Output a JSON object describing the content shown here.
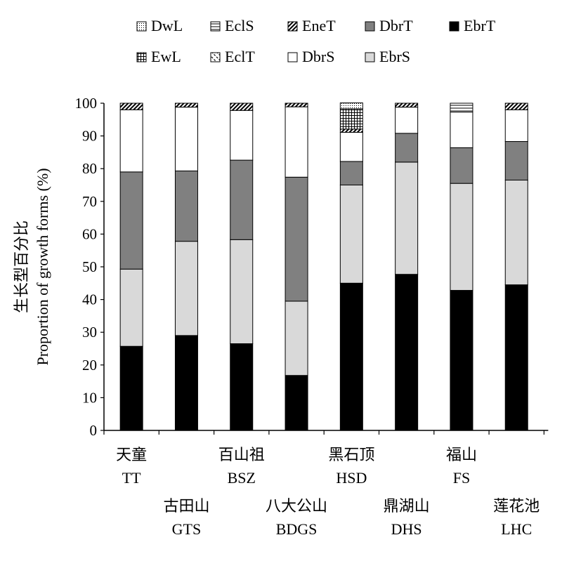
{
  "chart_data": {
    "type": "bar",
    "stacked": true,
    "ylabel_cn": "生长型百分比",
    "ylabel": "Proportion of growth forms (%)",
    "ylim": [
      0,
      100
    ],
    "yticks": [
      0,
      10,
      20,
      30,
      40,
      50,
      60,
      70,
      80,
      90,
      100
    ],
    "legend_position": "top",
    "categories": [
      {
        "cn": "天童",
        "en": "TT"
      },
      {
        "cn": "古田山",
        "en": "GTS"
      },
      {
        "cn": "百山祖",
        "en": "BSZ"
      },
      {
        "cn": "八大公山",
        "en": "BDGS"
      },
      {
        "cn": "黑石顶",
        "en": "HSD"
      },
      {
        "cn": "鼎湖山",
        "en": "DHS"
      },
      {
        "cn": "福山",
        "en": "FS"
      },
      {
        "cn": "莲花池",
        "en": "LHC"
      }
    ],
    "legend_order": [
      "DwL",
      "EclS",
      "EneT",
      "DbrT",
      "EbrT",
      "EwL",
      "EclT",
      "DbrS",
      "EbrS"
    ],
    "series": [
      {
        "name": "EbrT",
        "fill": "#000000",
        "values": [
          25.7,
          29.0,
          26.5,
          16.8,
          45.0,
          47.7,
          42.8,
          44.5
        ]
      },
      {
        "name": "EbrS",
        "fill": "#d9d9d9",
        "values": [
          23.6,
          28.8,
          31.8,
          22.7,
          30.0,
          34.3,
          32.7,
          32.0
        ]
      },
      {
        "name": "DbrT",
        "fill": "#808080",
        "values": [
          29.7,
          21.5,
          24.3,
          37.9,
          7.2,
          8.8,
          10.9,
          11.8
        ]
      },
      {
        "name": "DbrS",
        "fill": "#ffffff",
        "values": [
          19.0,
          19.5,
          15.2,
          21.5,
          8.9,
          8.0,
          10.9,
          9.7
        ]
      },
      {
        "name": "EclT",
        "fill": "pattern-fine-dash",
        "values": [
          0,
          0,
          0,
          0,
          0,
          0,
          0,
          0
        ]
      },
      {
        "name": "EneT",
        "fill": "pattern-diagonal",
        "values": [
          2.0,
          1.2,
          2.2,
          1.1,
          1.0,
          1.2,
          0,
          2.0
        ]
      },
      {
        "name": "EwL",
        "fill": "pattern-grid",
        "values": [
          0,
          0,
          0,
          0,
          6.2,
          0,
          0,
          0
        ]
      },
      {
        "name": "EclS",
        "fill": "pattern-hlines",
        "values": [
          0,
          0,
          0,
          0,
          0,
          0,
          2.7,
          0
        ]
      },
      {
        "name": "DwL",
        "fill": "pattern-dots",
        "values": [
          0,
          0,
          0,
          0,
          1.8,
          0,
          0,
          0
        ]
      }
    ]
  }
}
